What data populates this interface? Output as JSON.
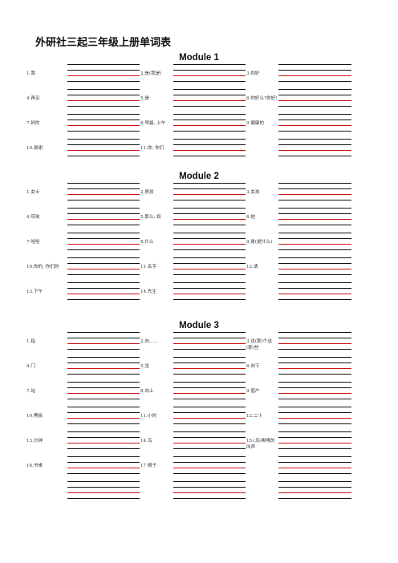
{
  "title": "外研社三起三年级上册单词表",
  "modules": [
    {
      "name": "Module 1",
      "rows": [
        [
          "1.我",
          "2.是(我是)",
          "3.你好"
        ],
        [
          "4.再见",
          "5.是",
          "6.你好么?你好!"
        ],
        [
          "7.好的",
          "8.早晨, 上午",
          "9.健康的"
        ],
        [
          "10.谢谢",
          "11.你; 你们",
          ""
        ]
      ]
    },
    {
      "name": "Module 2",
      "rows": [
        [
          "1.女士",
          "2.男孩",
          "3.女孩"
        ],
        [
          "4.哎呦",
          "5.那么; 和",
          "6.他"
        ],
        [
          "7.哈哈",
          "8.什么",
          "9.是(是什么)"
        ],
        [
          "10.你的, 你们的",
          "11.名字",
          "12.请"
        ],
        [
          "13.下午",
          "14.先生",
          ""
        ]
      ]
    },
    {
      "name": "Module 3",
      "rows": [
        [
          "1.指",
          "2.向……",
          "3.这(那)个这(那)些"
        ],
        [
          "4.门",
          "5.坐",
          "6.向下"
        ],
        [
          "7.站",
          "8.向上",
          "9.窗户"
        ],
        [
          "10.黑板",
          "11.小时",
          "12.二十"
        ],
        [
          "13.分钟",
          "14.鸟",
          "15.(鸟)啾啾的叫声"
        ],
        [
          "16.书桌",
          "17.椅子",
          ""
        ],
        [
          "",
          "",
          ""
        ]
      ]
    }
  ],
  "colors": {
    "line": "#111111",
    "red_line": "#cc1111"
  }
}
